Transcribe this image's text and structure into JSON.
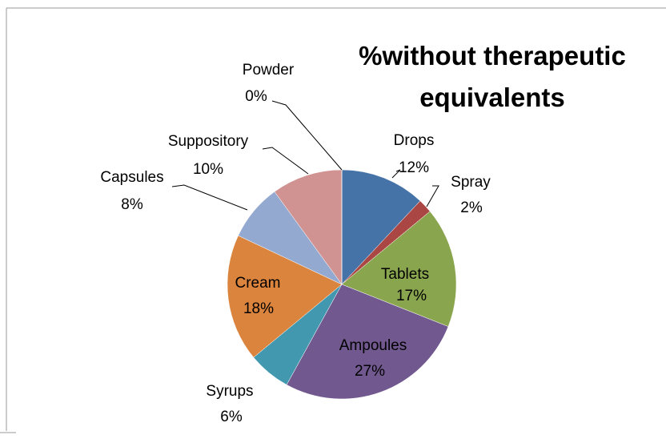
{
  "chart_data": {
    "type": "pie",
    "title": "%without therapeutic equivalents",
    "categories": [
      "Drops",
      "Spray",
      "Tablets",
      "Ampoules",
      "Syrups",
      "Cream",
      "Capsules",
      "Suppository",
      "Powder"
    ],
    "values": [
      12,
      2,
      17,
      27,
      6,
      18,
      8,
      10,
      0
    ],
    "value_labels": [
      "12%",
      "2%",
      "17%",
      "27%",
      "6%",
      "18%",
      "8%",
      "10%",
      "0%"
    ],
    "colors": [
      "#4572a7",
      "#aa4643",
      "#89a54e",
      "#71588f",
      "#4198af",
      "#db843d",
      "#93a9cf",
      "#d19392",
      "#b9cd96"
    ]
  }
}
